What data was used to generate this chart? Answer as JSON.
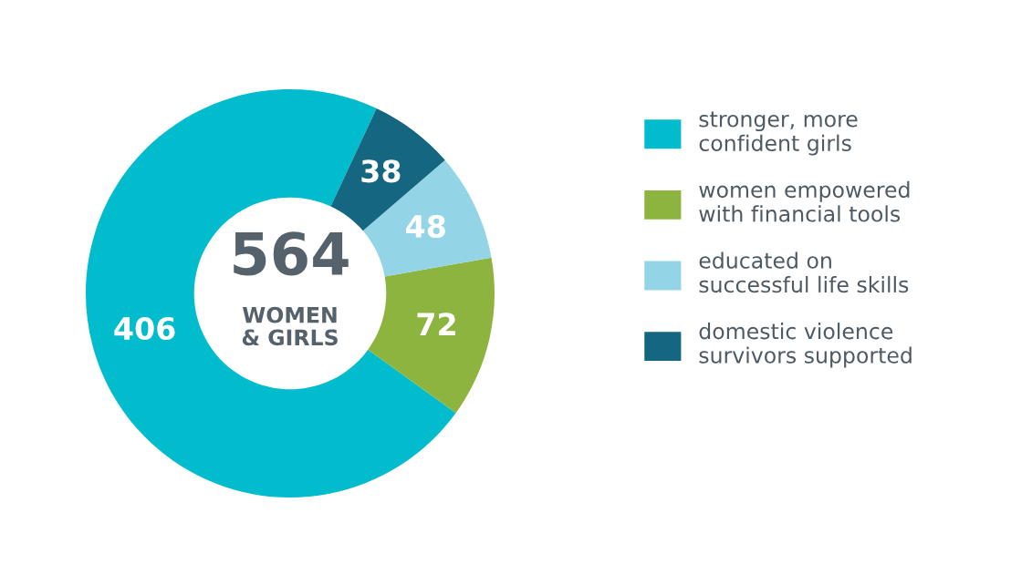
{
  "chart_data": {
    "type": "donut",
    "categories": [
      "stronger, more\nconfident girls",
      "women empowered\nwith financial tools",
      "educated on\nsuccessful life skills",
      "domestic violence\nsurvivors supported"
    ],
    "values": [
      406,
      72,
      48,
      38
    ],
    "colors": [
      "#00bccd",
      "#8db43e",
      "#93d5e6",
      "#156680"
    ],
    "data_labels": true,
    "legend": "right",
    "annotations": [
      "564",
      "WOMEN\n& GIRLS"
    ]
  }
}
